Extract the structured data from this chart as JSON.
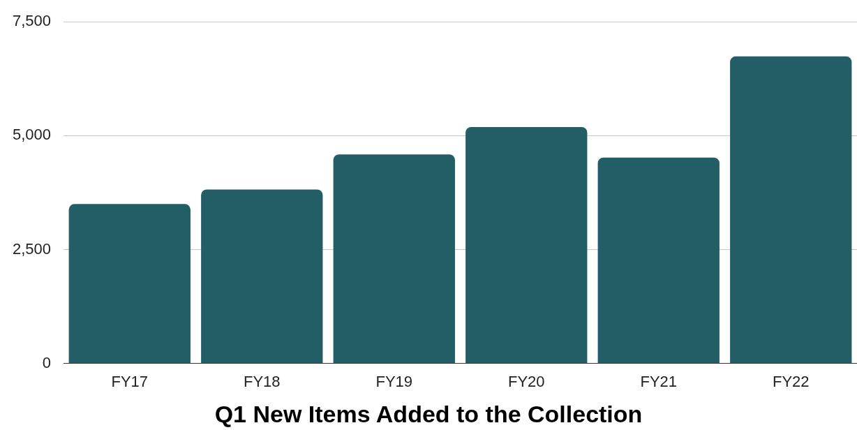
{
  "chart_data": {
    "type": "bar",
    "title": "Q1 New Items Added to the Collection",
    "categories": [
      "FY17",
      "FY18",
      "FY19",
      "FY20",
      "FY21",
      "FY22"
    ],
    "values": [
      3500,
      3820,
      4590,
      5190,
      4520,
      6740
    ],
    "color": "#235e66",
    "ylim": [
      0,
      7500
    ],
    "yticks": [
      0,
      {
        "value": 2500,
        "label": "2,500"
      },
      {
        "value": 5000,
        "label": "5,000"
      },
      {
        "value": 7500,
        "label": "7,500"
      }
    ],
    "grid": "y",
    "legend": false
  }
}
